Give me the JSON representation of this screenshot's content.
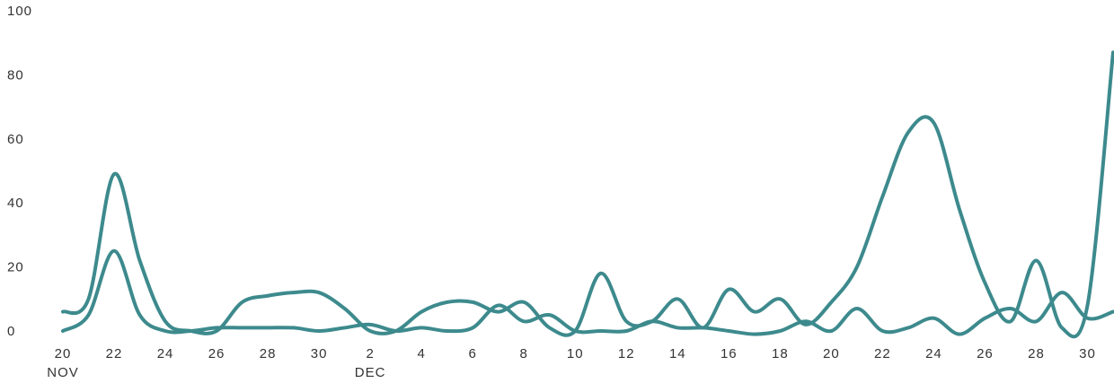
{
  "chart_data": {
    "type": "line",
    "title": "",
    "xlabel": "",
    "ylabel": "",
    "ylim": [
      0,
      100
    ],
    "xlim": [
      "2023-11-20",
      "2023-12-31"
    ],
    "grid": false,
    "legend": "none",
    "y_ticks": [
      "0",
      "20",
      "40",
      "60",
      "80",
      "100"
    ],
    "x_ticks": [
      "20",
      "22",
      "24",
      "26",
      "28",
      "30",
      "2",
      "4",
      "6",
      "8",
      "10",
      "12",
      "14",
      "16",
      "18",
      "20",
      "22",
      "24",
      "26",
      "28",
      "30"
    ],
    "x_tick_dates": [
      "2023-11-20",
      "2023-11-22",
      "2023-11-24",
      "2023-11-26",
      "2023-11-28",
      "2023-11-30",
      "2023-12-02",
      "2023-12-04",
      "2023-12-06",
      "2023-12-08",
      "2023-12-10",
      "2023-12-12",
      "2023-12-14",
      "2023-12-16",
      "2023-12-18",
      "2023-12-20",
      "2023-12-22",
      "2023-12-24",
      "2023-12-26",
      "2023-12-28",
      "2023-12-30"
    ],
    "month_labels": [
      {
        "text": "NOV",
        "date": "2023-11-20"
      },
      {
        "text": "DEC",
        "date": "2023-12-02"
      }
    ],
    "x": [
      "2023-11-20",
      "2023-11-21",
      "2023-11-22",
      "2023-11-23",
      "2023-11-24",
      "2023-11-25",
      "2023-11-26",
      "2023-11-27",
      "2023-11-28",
      "2023-11-29",
      "2023-11-30",
      "2023-12-01",
      "2023-12-02",
      "2023-12-03",
      "2023-12-04",
      "2023-12-05",
      "2023-12-06",
      "2023-12-07",
      "2023-12-08",
      "2023-12-09",
      "2023-12-10",
      "2023-12-11",
      "2023-12-12",
      "2023-12-13",
      "2023-12-14",
      "2023-12-15",
      "2023-12-16",
      "2023-12-17",
      "2023-12-18",
      "2023-12-19",
      "2023-12-20",
      "2023-12-21",
      "2023-12-22",
      "2023-12-23",
      "2023-12-24",
      "2023-12-25",
      "2023-12-26",
      "2023-12-27",
      "2023-12-28",
      "2023-12-29",
      "2023-12-30",
      "2023-12-31"
    ],
    "series": [
      {
        "color": "#3d8a8d",
        "values": [
          6,
          10,
          49,
          22,
          3,
          0,
          0,
          9,
          11,
          12,
          12,
          7,
          0,
          0,
          6,
          9,
          9,
          6,
          9,
          1,
          0,
          18,
          3,
          3,
          10,
          1,
          13,
          6,
          10,
          2,
          9,
          20,
          42,
          62,
          65,
          38,
          15,
          3,
          22,
          1,
          8,
          87
        ]
      },
      {
        "color": "#3d8a8d",
        "values": [
          0,
          5,
          25,
          5,
          0,
          0,
          1,
          1,
          1,
          1,
          0,
          1,
          2,
          0,
          1,
          0,
          1,
          8,
          3,
          5,
          0,
          0,
          0,
          3,
          1,
          1,
          0,
          -1,
          0,
          3,
          0,
          7,
          0,
          1,
          4,
          -1,
          4,
          7,
          3,
          12,
          4,
          6
        ]
      }
    ]
  }
}
